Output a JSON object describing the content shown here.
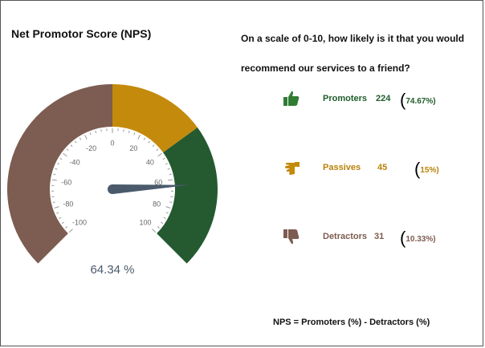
{
  "title": "Net Promotor Score (NPS)",
  "question_line1": "On a scale of 0-10, how likely is it that you would",
  "question_line2": "recommend our services to a friend?",
  "chart_data": {
    "type": "gauge",
    "value": 64.34,
    "value_label": "64.34 %",
    "min": -100,
    "max": 100,
    "ticks": [
      -100,
      -80,
      -60,
      -40,
      -20,
      0,
      20,
      40,
      60,
      80,
      100
    ],
    "tick_labels": [
      "-100",
      "-80",
      "-60",
      "-40",
      "-20",
      "0",
      "20",
      "40",
      "60",
      "80",
      "100"
    ],
    "bands": [
      {
        "name": "Detractors",
        "from": -100,
        "to": 0,
        "color": "#7d5c51"
      },
      {
        "name": "Passives",
        "from": 0,
        "to": 40,
        "color": "#c48a0c"
      },
      {
        "name": "Promoters",
        "from": 40,
        "to": 100,
        "color": "#255a30"
      }
    ],
    "needle_color": "#4a5a6b"
  },
  "legend": [
    {
      "label": "Promoters",
      "count": "224",
      "pct": "74.67%)",
      "icon": "thumbs-up-icon",
      "color": "#2f7d32",
      "text_color": "#1e5c2a"
    },
    {
      "label": "Passives",
      "count": "45",
      "pct": "15%)",
      "icon": "hand-sideways-icon",
      "color": "#c48a0c",
      "text_color": "#b8820a"
    },
    {
      "label": "Detractors",
      "count": "31",
      "pct": "10.33%)",
      "icon": "thumbs-down-icon",
      "color": "#7d5c51",
      "text_color": "#7d5c51"
    }
  ],
  "formula": "NPS = Promoters (%) - Detractors (%)"
}
